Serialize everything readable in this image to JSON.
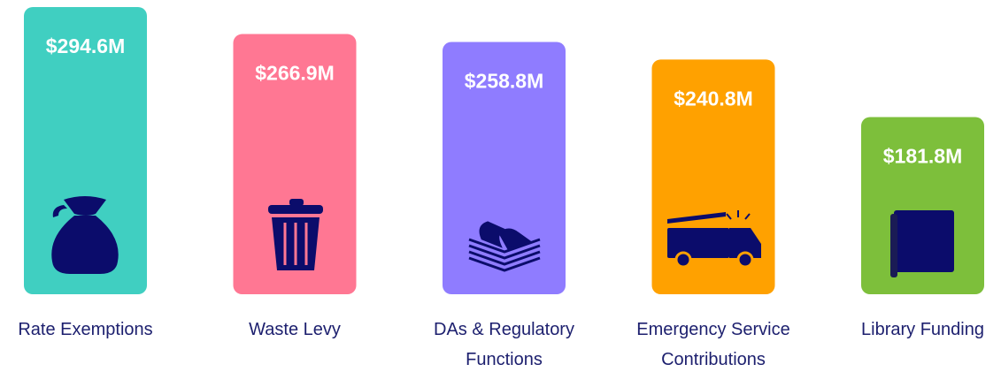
{
  "chart_data": {
    "type": "bar",
    "categories": [
      "Rate Exemptions",
      "Waste Levy",
      "DAs & Regulatory Functions",
      "Emergency Service Contributions",
      "Library Funding"
    ],
    "values": [
      294.6,
      266.9,
      258.8,
      240.8,
      181.8
    ],
    "value_labels": [
      "$294.6M",
      "$266.9M",
      "$258.8M",
      "$240.8M",
      "$181.8M"
    ],
    "colors": [
      "#40cfc1",
      "#ff7793",
      "#8f7cff",
      "#ffa100",
      "#7dbf3b"
    ]
  }
}
